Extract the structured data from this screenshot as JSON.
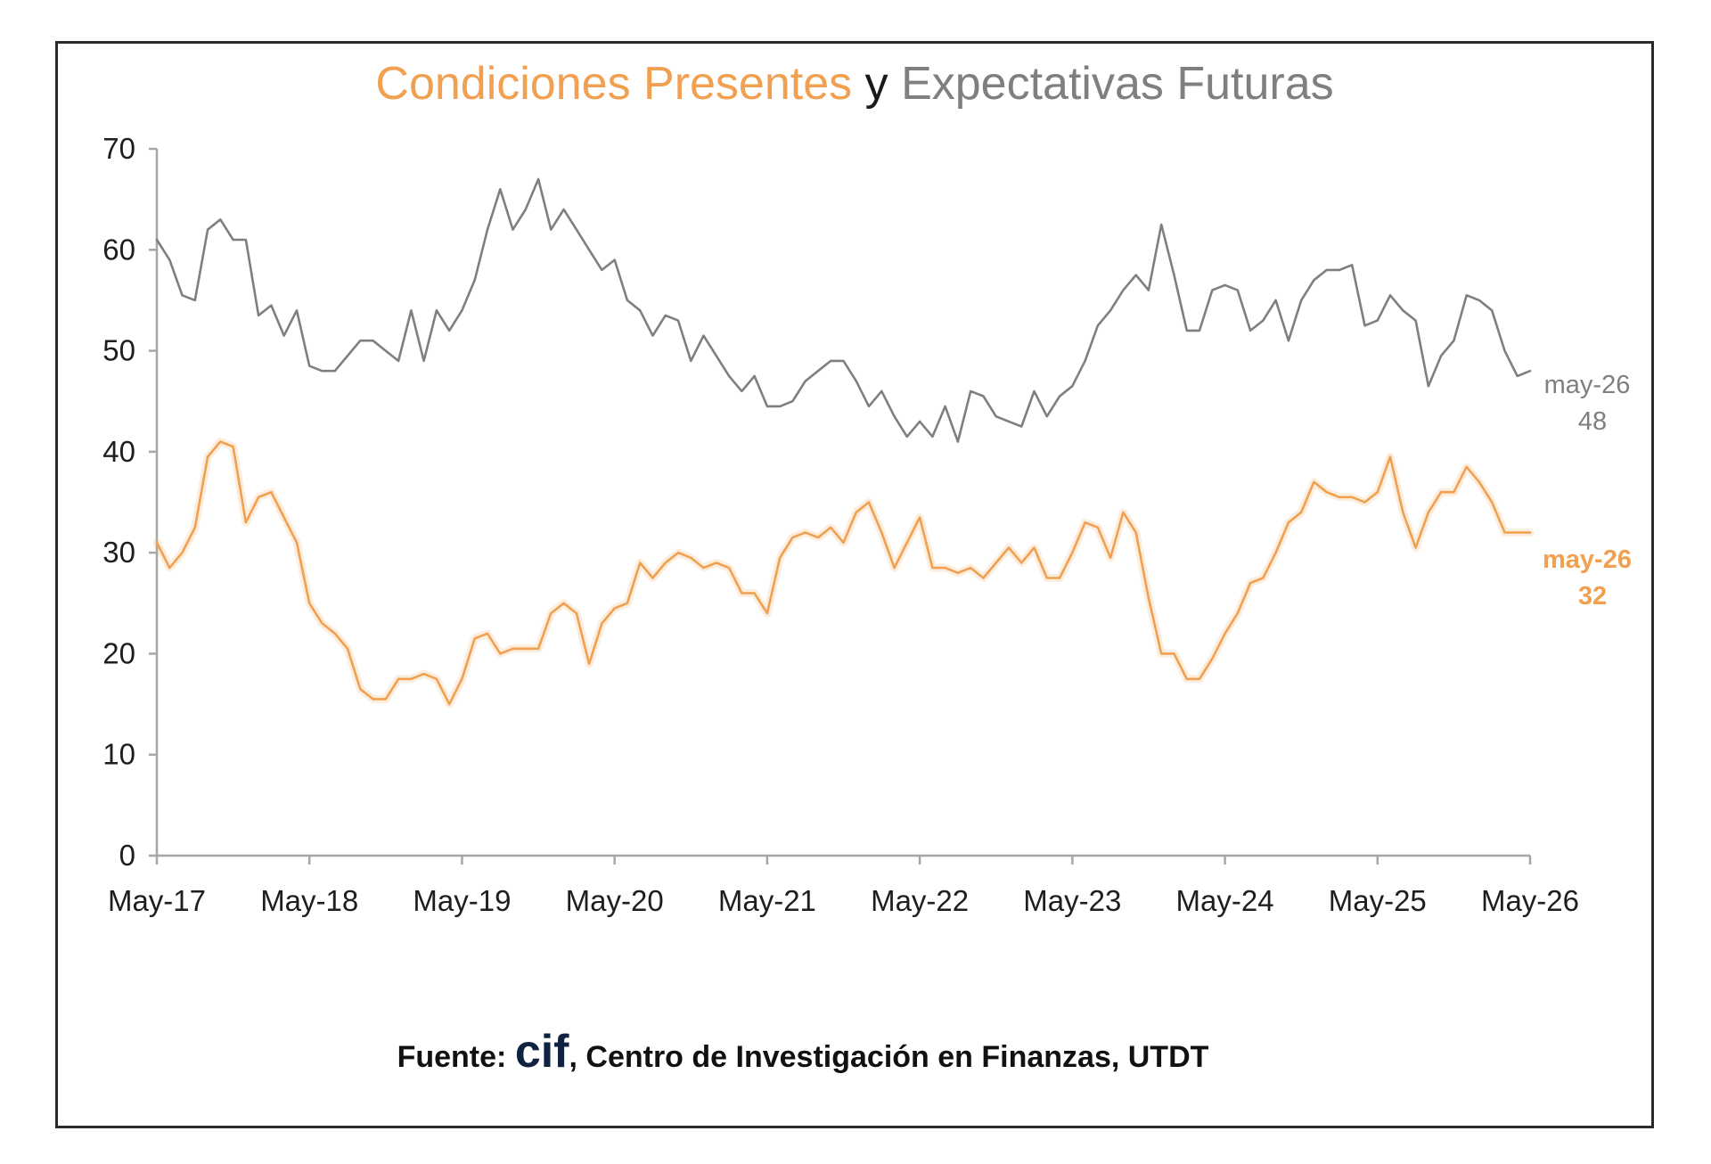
{
  "title_parts": {
    "present": "Condiciones Presentes",
    "connector": " y ",
    "future": "Expectativas Futuras"
  },
  "source": {
    "prefix": "Fuente: ",
    "logo": "cif",
    "rest": ", Centro de Investigación en Finanzas, UTDT"
  },
  "colors": {
    "present": "#f0a050",
    "future": "#7f7f7f",
    "axis": "#a6a6a6",
    "connector": "#1a1a1a"
  },
  "chart_data": {
    "type": "line",
    "title": "Condiciones Presentes y Expectativas Futuras",
    "ylim": [
      0,
      70
    ],
    "yticks": [
      0,
      10,
      20,
      30,
      40,
      50,
      60,
      70
    ],
    "xlim": [
      "2017-05",
      "2026-05"
    ],
    "xtick_labels": [
      "May-17",
      "May-18",
      "May-19",
      "May-20",
      "May-21",
      "May-22",
      "May-23",
      "May-24",
      "May-25",
      "May-26"
    ],
    "grid": false,
    "legend": "none",
    "end_labels": [
      {
        "series": "Expectativas Futuras",
        "period": "may-26",
        "value": "48"
      },
      {
        "series": "Condiciones Presentes",
        "period": "may-26",
        "value": "32"
      }
    ],
    "series": [
      {
        "name": "Expectativas Futuras",
        "x": [
          "2017-05",
          "2017-06",
          "2017-07",
          "2017-08",
          "2017-09",
          "2017-10",
          "2017-11",
          "2017-12",
          "2018-01",
          "2018-02",
          "2018-03",
          "2018-04",
          "2018-05",
          "2018-06",
          "2018-07",
          "2018-08",
          "2018-09",
          "2018-10",
          "2018-11",
          "2018-12",
          "2019-01",
          "2019-02",
          "2019-03",
          "2019-04",
          "2019-05",
          "2019-06",
          "2019-07",
          "2019-08",
          "2019-09",
          "2019-10",
          "2019-11",
          "2019-12",
          "2020-01",
          "2020-02",
          "2020-03",
          "2020-04",
          "2020-05",
          "2020-06",
          "2020-07",
          "2020-08",
          "2020-09",
          "2020-10",
          "2020-11",
          "2020-12",
          "2021-01",
          "2021-02",
          "2021-03",
          "2021-04",
          "2021-05",
          "2021-06",
          "2021-07",
          "2021-08",
          "2021-09",
          "2021-10",
          "2021-11",
          "2021-12",
          "2022-01",
          "2022-02",
          "2022-03",
          "2022-04",
          "2022-05",
          "2022-06",
          "2022-07",
          "2022-08",
          "2022-09",
          "2022-10",
          "2022-11",
          "2022-12",
          "2023-01",
          "2023-02",
          "2023-03",
          "2023-04",
          "2023-05",
          "2023-06",
          "2023-07",
          "2023-08",
          "2023-09",
          "2023-10",
          "2023-11",
          "2023-12",
          "2024-01",
          "2024-02",
          "2024-03",
          "2024-04",
          "2024-05",
          "2024-06",
          "2024-07",
          "2024-08",
          "2024-09",
          "2024-10",
          "2024-11",
          "2024-12",
          "2025-01",
          "2025-02",
          "2025-03",
          "2025-04",
          "2025-05",
          "2025-06",
          "2025-07",
          "2025-08",
          "2025-09",
          "2025-10",
          "2025-11",
          "2025-12",
          "2026-01",
          "2026-02",
          "2026-03",
          "2026-04",
          "2026-05"
        ],
        "values": [
          61,
          59,
          55.5,
          55,
          62,
          63,
          61,
          61,
          53.5,
          54.5,
          51.5,
          54,
          48.5,
          48,
          48,
          49.5,
          51,
          51,
          50,
          49,
          54,
          49,
          54,
          52,
          54,
          57,
          62,
          66,
          62,
          64,
          67,
          62,
          64,
          62,
          60,
          58,
          59,
          55,
          54,
          51.5,
          53.5,
          53,
          49,
          51.5,
          49.5,
          47.5,
          46,
          47.5,
          44.5,
          44.5,
          45,
          47,
          48,
          49,
          49,
          47,
          44.5,
          46,
          43.5,
          41.5,
          43,
          41.5,
          44.5,
          41,
          46,
          45.5,
          43.5,
          43,
          42.5,
          46,
          43.5,
          45.5,
          46.5,
          49,
          52.5,
          54,
          56,
          57.5,
          56,
          62.5,
          57.5,
          52,
          52,
          56,
          56.5,
          56,
          52,
          53,
          55,
          51,
          55,
          57,
          58,
          58,
          58.5,
          52.5,
          53,
          55.5,
          54,
          53,
          46.5,
          49.5,
          51,
          55.5,
          55,
          54,
          50,
          47.5,
          48
        ]
      },
      {
        "name": "Condiciones Presentes",
        "x": [
          "2017-05",
          "2017-06",
          "2017-07",
          "2017-08",
          "2017-09",
          "2017-10",
          "2017-11",
          "2017-12",
          "2018-01",
          "2018-02",
          "2018-03",
          "2018-04",
          "2018-05",
          "2018-06",
          "2018-07",
          "2018-08",
          "2018-09",
          "2018-10",
          "2018-11",
          "2018-12",
          "2019-01",
          "2019-02",
          "2019-03",
          "2019-04",
          "2019-05",
          "2019-06",
          "2019-07",
          "2019-08",
          "2019-09",
          "2019-10",
          "2019-11",
          "2019-12",
          "2020-01",
          "2020-02",
          "2020-03",
          "2020-04",
          "2020-05",
          "2020-06",
          "2020-07",
          "2020-08",
          "2020-09",
          "2020-10",
          "2020-11",
          "2020-12",
          "2021-01",
          "2021-02",
          "2021-03",
          "2021-04",
          "2021-05",
          "2021-06",
          "2021-07",
          "2021-08",
          "2021-09",
          "2021-10",
          "2021-11",
          "2021-12",
          "2022-01",
          "2022-02",
          "2022-03",
          "2022-04",
          "2022-05",
          "2022-06",
          "2022-07",
          "2022-08",
          "2022-09",
          "2022-10",
          "2022-11",
          "2022-12",
          "2023-01",
          "2023-02",
          "2023-03",
          "2023-04",
          "2023-05",
          "2023-06",
          "2023-07",
          "2023-08",
          "2023-09",
          "2023-10",
          "2023-11",
          "2023-12",
          "2024-01",
          "2024-02",
          "2024-03",
          "2024-04",
          "2024-05",
          "2024-06",
          "2024-07",
          "2024-08",
          "2024-09",
          "2024-10",
          "2024-11",
          "2024-12",
          "2025-01",
          "2025-02",
          "2025-03",
          "2025-04",
          "2025-05",
          "2025-06",
          "2025-07",
          "2025-08",
          "2025-09",
          "2025-10",
          "2025-11",
          "2025-12",
          "2026-01",
          "2026-02",
          "2026-03",
          "2026-04",
          "2026-05"
        ],
        "values": [
          31,
          28.5,
          30,
          32.5,
          39.5,
          41,
          40.5,
          33,
          35.5,
          36,
          33.5,
          31,
          25,
          23,
          22,
          20.5,
          16.5,
          15.5,
          15.5,
          17.5,
          17.5,
          18,
          17.5,
          15,
          17.5,
          21.5,
          22,
          20,
          20.5,
          20.5,
          20.5,
          24,
          25,
          24,
          19,
          23,
          24.5,
          25,
          29,
          27.5,
          29,
          30,
          29.5,
          28.5,
          29,
          28.5,
          26,
          26,
          24,
          29.5,
          31.5,
          32,
          31.5,
          32.5,
          31,
          34,
          35,
          32,
          28.5,
          31,
          33.5,
          28.5,
          28.5,
          28,
          28.5,
          27.5,
          29,
          30.5,
          29,
          30.5,
          27.5,
          27.5,
          30,
          33,
          32.5,
          29.5,
          34,
          32,
          25.5,
          20,
          20,
          17.5,
          17.5,
          19.5,
          22,
          24,
          27,
          27.5,
          30,
          33,
          34,
          37,
          36,
          35.5,
          35.5,
          35,
          36,
          39.5,
          34,
          30.5,
          34,
          36,
          36,
          38.5,
          37,
          35,
          32,
          32,
          32
        ]
      }
    ]
  }
}
